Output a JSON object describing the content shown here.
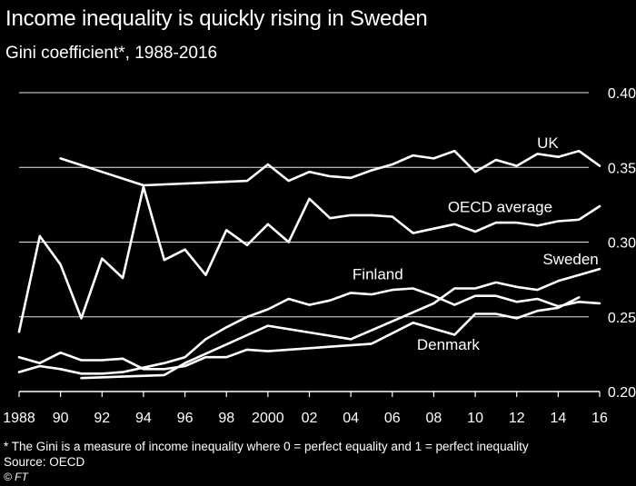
{
  "chart_data": {
    "type": "line",
    "title": "Income inequality is quickly rising in Sweden",
    "subtitle": "Gini coefficient*, 1988-2016",
    "xlabel": "",
    "ylabel": "",
    "xlim": [
      1988,
      2016
    ],
    "ylim": [
      0.2,
      0.4
    ],
    "x_ticks": [
      1988,
      1990,
      1992,
      1994,
      1996,
      1998,
      2000,
      2002,
      2004,
      2006,
      2008,
      2010,
      2012,
      2014,
      2016
    ],
    "x_tick_labels": [
      "1988",
      "90",
      "92",
      "94",
      "96",
      "98",
      "2000",
      "02",
      "04",
      "06",
      "08",
      "10",
      "12",
      "14",
      "16"
    ],
    "y_ticks": [
      0.2,
      0.25,
      0.3,
      0.35,
      0.4
    ],
    "y_tick_labels": [
      "0.20",
      "0.25",
      "0.30",
      "0.35",
      "0.40"
    ],
    "grid": true,
    "series": [
      {
        "name": "UK",
        "x": [
          1990,
          1994,
          1999,
          2000,
          2001,
          2002,
          2003,
          2004,
          2005,
          2006,
          2007,
          2008,
          2009,
          2010,
          2011,
          2012,
          2013,
          2014,
          2015,
          2016
        ],
        "values": [
          0.356,
          0.338,
          0.341,
          0.352,
          0.341,
          0.347,
          0.344,
          0.343,
          0.348,
          0.352,
          0.358,
          0.356,
          0.361,
          0.347,
          0.355,
          0.351,
          0.359,
          0.357,
          0.361,
          0.351
        ]
      },
      {
        "name": "OECD average",
        "x": [
          1988,
          1989,
          1990,
          1991,
          1992,
          1993,
          1994,
          1995,
          1996,
          1997,
          1998,
          1999,
          2000,
          2001,
          2002,
          2003,
          2004,
          2005,
          2006,
          2007,
          2008,
          2009,
          2010,
          2011,
          2012,
          2013,
          2014,
          2015,
          2016
        ],
        "values": [
          0.24,
          0.304,
          0.285,
          0.249,
          0.289,
          0.276,
          0.337,
          0.288,
          0.295,
          0.278,
          0.308,
          0.298,
          0.312,
          0.3,
          0.329,
          0.316,
          0.318,
          0.318,
          0.317,
          0.306,
          0.309,
          0.312,
          0.307,
          0.313,
          0.313,
          0.311,
          0.314,
          0.315,
          0.324
        ]
      },
      {
        "name": "Finland",
        "x": [
          1988,
          1989,
          1990,
          1991,
          1992,
          1993,
          1994,
          1995,
          1996,
          1997,
          1998,
          1999,
          2000,
          2001,
          2002,
          2003,
          2004,
          2005,
          2006,
          2007,
          2008,
          2009,
          2010,
          2011,
          2012,
          2013,
          2014,
          2015,
          2016
        ],
        "values": [
          0.213,
          0.217,
          0.215,
          0.212,
          0.212,
          0.213,
          0.216,
          0.219,
          0.223,
          0.235,
          0.243,
          0.25,
          0.255,
          0.262,
          0.258,
          0.261,
          0.266,
          0.265,
          0.268,
          0.269,
          0.264,
          0.258,
          0.264,
          0.264,
          0.26,
          0.262,
          0.257,
          0.26,
          0.259
        ]
      },
      {
        "name": "Sweden",
        "x": [
          1991,
          1995,
          1996,
          2000,
          2004,
          2005,
          2008,
          2009,
          2010,
          2011,
          2012,
          2013,
          2014,
          2015,
          2016
        ],
        "values": [
          0.209,
          0.211,
          0.219,
          0.244,
          0.235,
          0.241,
          0.259,
          0.269,
          0.269,
          0.273,
          0.27,
          0.268,
          0.274,
          0.278,
          0.282
        ]
      },
      {
        "name": "Denmark",
        "x": [
          1988,
          1989,
          1990,
          1991,
          1992,
          1993,
          1994,
          1995,
          1996,
          1997,
          1998,
          1999,
          2000,
          2005,
          2007,
          2008,
          2009,
          2010,
          2011,
          2012,
          2013,
          2014,
          2015
        ],
        "values": [
          0.223,
          0.219,
          0.226,
          0.221,
          0.221,
          0.222,
          0.215,
          0.215,
          0.217,
          0.223,
          0.223,
          0.228,
          0.227,
          0.232,
          0.246,
          0.242,
          0.238,
          0.252,
          0.252,
          0.249,
          0.254,
          0.256,
          0.263
        ]
      }
    ],
    "annotations": [
      "UK",
      "OECD average",
      "Finland",
      "Sweden",
      "Denmark"
    ],
    "footnote": "* The Gini is a measure of income inequality where 0 = perfect equality and 1 = perfect inequality",
    "source": "Source: OECD",
    "credit": "© FT"
  }
}
